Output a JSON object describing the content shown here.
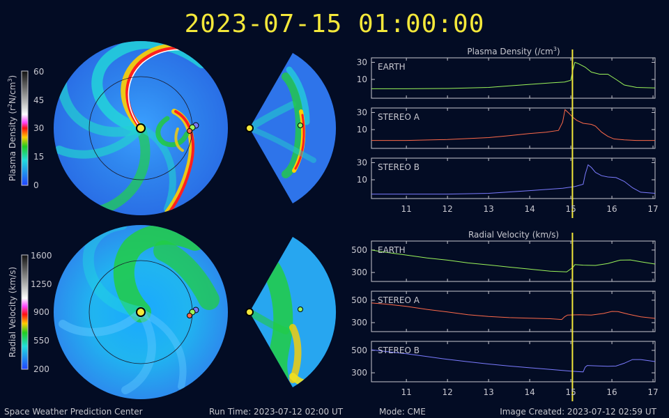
{
  "timestamp": "2023-07-15 01:00:00",
  "footer": {
    "org": "Space Weather Prediction Center",
    "run_time": "Run Time: 2023-07-12 02:00 UT",
    "mode": "Mode: CME",
    "image_created": "Image Created: 2023-07-12 02:59 UT"
  },
  "colorbars": {
    "density": {
      "label_parts": [
        "Plasma Density (r",
        "2",
        "N/cm",
        "3",
        ")"
      ],
      "ticks": [
        "60",
        "45",
        "30",
        "15",
        "0"
      ]
    },
    "velocity": {
      "label": "Radial Velocity (km/s)",
      "ticks": [
        "1600",
        "1250",
        "900",
        "550",
        "200"
      ]
    }
  },
  "colors": {
    "earth": "#9cf55a",
    "stereo_a": "#ff6a4a",
    "stereo_b": "#7b7bff",
    "marker": "#f4e83a",
    "current_time_line": "#f4e83a"
  },
  "chart_data": [
    {
      "type": "line",
      "title_parts": [
        "Plasma Density (/cm",
        "3",
        ")"
      ],
      "x_ticks": [
        11,
        12,
        13,
        14,
        15,
        16,
        17
      ],
      "xlim": [
        10.15,
        17.05
      ],
      "current_time": 15.04,
      "panels": [
        {
          "name": "EARTH",
          "ylim": [
            3,
            40
          ],
          "y_ticks": [
            10,
            30
          ],
          "x": [
            10.15,
            11,
            12,
            13,
            13.5,
            14,
            14.5,
            14.85,
            15.0,
            15.05,
            15.1,
            15.2,
            15.35,
            15.5,
            15.7,
            15.9,
            16.1,
            16.3,
            16.6,
            17.05
          ],
          "y": [
            5.5,
            5.5,
            5.6,
            6.0,
            6.6,
            7.3,
            8.0,
            8.5,
            9.5,
            18,
            30,
            27,
            22,
            16,
            14,
            14,
            10,
            7,
            6,
            5.8
          ]
        },
        {
          "name": "STEREO A",
          "ylim": [
            3,
            40
          ],
          "y_ticks": [
            10,
            30
          ],
          "x": [
            10.15,
            11,
            12,
            13,
            13.5,
            14,
            14.4,
            14.7,
            14.8,
            14.86,
            14.95,
            15.05,
            15.15,
            15.3,
            15.5,
            15.6,
            15.75,
            15.9,
            16.05,
            16.3,
            16.6,
            17.05
          ],
          "y": [
            5.0,
            5.0,
            5.3,
            6.0,
            6.8,
            7.8,
            8.5,
            9.5,
            16,
            36,
            29,
            22,
            18,
            15,
            14,
            12.5,
            8.5,
            6.5,
            5.5,
            5.2,
            5.0,
            5.0
          ]
        },
        {
          "name": "STEREO B",
          "ylim": [
            3,
            40
          ],
          "y_ticks": [
            10,
            30
          ],
          "x": [
            10.15,
            11,
            12,
            13,
            14,
            14.8,
            15.1,
            15.3,
            15.35,
            15.42,
            15.5,
            15.6,
            15.75,
            15.9,
            16.1,
            16.3,
            16.5,
            16.7,
            17.05
          ],
          "y": [
            4.0,
            4.0,
            4.0,
            4.2,
            5.0,
            5.8,
            6.5,
            7.5,
            14,
            26,
            22,
            16,
            13,
            12,
            11.5,
            9,
            6,
            4.5,
            4.2
          ]
        }
      ]
    },
    {
      "type": "line",
      "title": "Radial Velocity (km/s)",
      "x_ticks": [
        11,
        12,
        13,
        14,
        15,
        16,
        17
      ],
      "xlim": [
        10.15,
        17.05
      ],
      "current_time": 15.04,
      "panels": [
        {
          "name": "EARTH",
          "ylim": [
            220,
            580
          ],
          "y_ticks": [
            300,
            500
          ],
          "x": [
            10.15,
            10.5,
            11,
            11.5,
            12,
            12.5,
            13,
            13.5,
            14,
            14.5,
            14.9,
            15.05,
            15.1,
            15.3,
            15.6,
            15.9,
            16.2,
            16.45,
            16.7,
            17.05
          ],
          "y": [
            500,
            480,
            455,
            430,
            410,
            385,
            368,
            348,
            330,
            312,
            305,
            345,
            370,
            365,
            363,
            380,
            410,
            412,
            395,
            375
          ]
        },
        {
          "name": "STEREO A",
          "ylim": [
            220,
            580
          ],
          "y_ticks": [
            300,
            500
          ],
          "x": [
            10.15,
            10.5,
            11,
            11.5,
            12,
            12.5,
            13,
            13.5,
            14,
            14.5,
            14.78,
            14.85,
            14.92,
            15.2,
            15.5,
            15.8,
            16.0,
            16.15,
            16.4,
            16.7,
            17.05
          ],
          "y": [
            475,
            465,
            445,
            418,
            395,
            370,
            355,
            345,
            340,
            335,
            328,
            352,
            368,
            370,
            368,
            382,
            400,
            398,
            375,
            352,
            338
          ]
        },
        {
          "name": "STEREO B",
          "ylim": [
            220,
            580
          ],
          "y_ticks": [
            300,
            500
          ],
          "x": [
            10.15,
            10.5,
            11,
            11.5,
            12,
            12.5,
            13,
            13.5,
            14,
            14.5,
            15.0,
            15.3,
            15.35,
            15.4,
            15.6,
            15.9,
            16.1,
            16.3,
            16.5,
            16.7,
            17.05
          ],
          "y": [
            505,
            490,
            470,
            445,
            420,
            398,
            378,
            360,
            345,
            330,
            315,
            308,
            350,
            365,
            362,
            358,
            360,
            385,
            418,
            418,
            400
          ]
        }
      ]
    }
  ]
}
